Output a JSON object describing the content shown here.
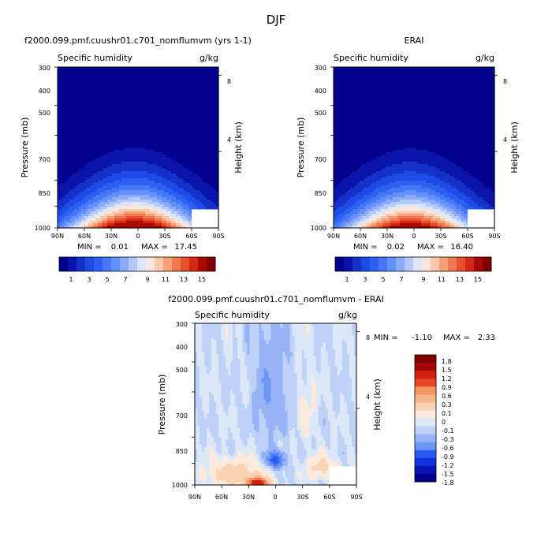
{
  "page": {
    "title": "DJF"
  },
  "colors": {
    "abs_scale": [
      "#00008c",
      "#0a14aa",
      "#1432c8",
      "#1e4be6",
      "#2d5ff0",
      "#4678f5",
      "#6490fa",
      "#8caafa",
      "#b4c8fa",
      "#dce6fa",
      "#fae6dc",
      "#fac8aa",
      "#f5a078",
      "#f07850",
      "#e6502d",
      "#d22814",
      "#aa0a05",
      "#800000"
    ],
    "diff_scale": [
      "#00008c",
      "#0a14b4",
      "#1432dc",
      "#285af0",
      "#4678f5",
      "#6e96f5",
      "#96b4f5",
      "#bed2f8",
      "#dce8f8",
      "#fcebdc",
      "#fad2b4",
      "#f8b48c",
      "#f59664",
      "#f07846",
      "#e64628",
      "#d21e0f",
      "#a00a05",
      "#800000"
    ],
    "mask": "#ffffff"
  },
  "chart_data": [
    {
      "type": "heatmap",
      "title": "f2000.099.pmf.cuushr01.c701_nomflumvm (yrs 1-1)",
      "corner_left": "Specific humidity",
      "corner_right": "g/kg",
      "ylabel": "Pressure (mb)",
      "ylabel_right": "Height (km)",
      "x_ticks": [
        "90N",
        "60N",
        "30N",
        "0",
        "30S",
        "60S",
        "90S"
      ],
      "y_ticks": [
        "300",
        "400",
        "500",
        "700",
        "850",
        "1000"
      ],
      "y_ticks_right": [
        "8",
        "4"
      ],
      "xlim": [
        90,
        -90
      ],
      "ylim": [
        1000,
        300
      ],
      "field": "abs",
      "peak": 17.45,
      "min_label": "MIN =",
      "min_value": "0.01",
      "max_label": "MAX =",
      "max_value": "17.45",
      "colorbar_labels": [
        "1",
        "3",
        "5",
        "7",
        "9",
        "11",
        "13",
        "15"
      ],
      "contour_levels": [
        1,
        2,
        3,
        4,
        5,
        6,
        7,
        8,
        9,
        10,
        11,
        12,
        13,
        14,
        15,
        16
      ]
    },
    {
      "type": "heatmap",
      "title": "ERAI",
      "corner_left": "Specific humidity",
      "corner_right": "g/kg",
      "ylabel": "Pressure (mb)",
      "ylabel_right": "Height (km)",
      "x_ticks": [
        "90N",
        "60N",
        "30N",
        "0",
        "30S",
        "60S",
        "90S"
      ],
      "y_ticks": [
        "300",
        "400",
        "500",
        "700",
        "850",
        "1000"
      ],
      "y_ticks_right": [
        "8",
        "4"
      ],
      "xlim": [
        90,
        -90
      ],
      "ylim": [
        1000,
        300
      ],
      "field": "abs",
      "peak": 16.4,
      "min_label": "MIN =",
      "min_value": "0.02",
      "max_label": "MAX =",
      "max_value": "16.40",
      "colorbar_labels": [
        "1",
        "3",
        "5",
        "7",
        "9",
        "11",
        "13",
        "15"
      ],
      "contour_levels": [
        1,
        2,
        3,
        4,
        5,
        6,
        7,
        8,
        9,
        10,
        11,
        12,
        13,
        14,
        15,
        16
      ]
    },
    {
      "type": "heatmap",
      "title": "f2000.099.pmf.cuushr01.c701_nomflumvm - ERAI",
      "corner_left": "Specific humidity",
      "corner_right": "g/kg",
      "ylabel": "Pressure (mb)",
      "ylabel_right": "Height (km)",
      "x_ticks": [
        "90N",
        "60N",
        "30N",
        "0",
        "30S",
        "60S",
        "90S"
      ],
      "y_ticks": [
        "300",
        "400",
        "500",
        "700",
        "850",
        "1000"
      ],
      "y_ticks_right": [
        "8",
        "4"
      ],
      "xlim": [
        90,
        -90
      ],
      "ylim": [
        1000,
        300
      ],
      "field": "diff",
      "min_label": "MIN =",
      "min_value": "-1.10",
      "max_label": "MAX =",
      "max_value": "2.33",
      "colorbar_labels": [
        "1.8",
        "1.5",
        "1.2",
        "0.9",
        "0.6",
        "0.3",
        "0.1",
        "0",
        "-0.1",
        "-0.3",
        "-0.6",
        "-0.9",
        "-1.2",
        "-1.5",
        "-1.8"
      ],
      "contour_levels": [
        -1.8,
        -1.5,
        -1.2,
        -0.9,
        -0.6,
        -0.3,
        -0.1,
        0,
        0.1,
        0.3,
        0.6,
        0.9,
        1.2,
        1.5,
        1.8
      ]
    }
  ]
}
